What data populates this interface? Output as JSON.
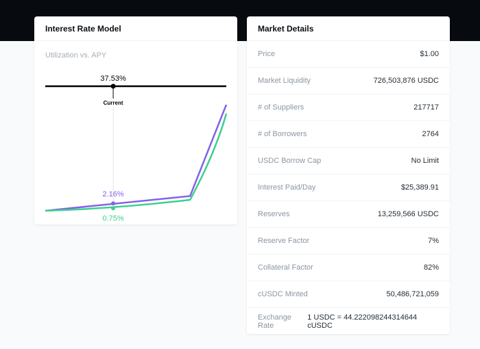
{
  "interest_card": {
    "title": "Interest Rate Model",
    "subtitle": "Utilization vs. APY"
  },
  "chart_data": {
    "type": "line",
    "title": "Utilization vs. APY",
    "xlim": [
      0,
      100
    ],
    "current_utilization_label": "37.53%",
    "current_utilization": 37.53,
    "current_label": "Current",
    "series": [
      {
        "color": "#8361e8",
        "points": [
          [
            0,
            0
          ],
          [
            37.53,
            2.16
          ],
          [
            80,
            4.3
          ],
          [
            100,
            31
          ]
        ],
        "current_label": "2.16%"
      },
      {
        "color": "#3fcf8e",
        "points": [
          [
            0,
            0
          ],
          [
            37.53,
            0.75
          ],
          [
            80,
            3.2
          ],
          [
            100,
            28.4
          ]
        ],
        "current_label": "0.75%"
      }
    ]
  },
  "market_card": {
    "title": "Market Details",
    "rows": [
      {
        "label": "Price",
        "value": "$1.00"
      },
      {
        "label": "Market Liquidity",
        "value": "726,503,876 USDC"
      },
      {
        "label": "# of Suppliers",
        "value": "217717"
      },
      {
        "label": "# of Borrowers",
        "value": "2764"
      },
      {
        "label": "USDC Borrow Cap",
        "value": "No Limit"
      },
      {
        "label": "Interest Paid/Day",
        "value": "$25,389.91"
      },
      {
        "label": "Reserves",
        "value": "13,259,566 USDC"
      },
      {
        "label": "Reserve Factor",
        "value": "7%"
      },
      {
        "label": "Collateral Factor",
        "value": "82%"
      },
      {
        "label": "cUSDC Minted",
        "value": "50,486,721,059"
      },
      {
        "label": "Exchange Rate",
        "value": "1 USDC = 44.222098244314644 cUSDC"
      }
    ]
  }
}
